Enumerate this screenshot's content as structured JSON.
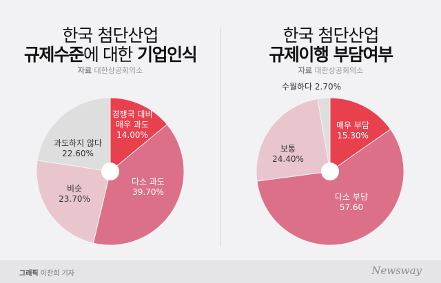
{
  "colors": {
    "red": "#e9404e",
    "pink": "#dc7089",
    "lightpink": "#e9c6cd",
    "gray": "#dedede"
  },
  "chart_data": [
    {
      "type": "pie",
      "title_line1": "한국 첨단산업",
      "title_bold1": "규제수준",
      "title_thin": "에 대한",
      "title_bold2": "기업인식",
      "source_label": "자료",
      "source": "대한상공회의소",
      "slices": [
        {
          "label": "경쟁국 대비 매우 과도",
          "lines": [
            "경쟁국 대비",
            "매우 과도"
          ],
          "value": 14.0,
          "value_label": "14.00%",
          "color": "#e9404e"
        },
        {
          "label": "다소 과도",
          "lines": [
            "다소 과도"
          ],
          "value": 39.7,
          "value_label": "39.70%",
          "color": "#dc7089"
        },
        {
          "label": "비슷",
          "lines": [
            "비슷"
          ],
          "value": 23.7,
          "value_label": "23.70%",
          "color": "#e9c6cd"
        },
        {
          "label": "과도하지 않다",
          "lines": [
            "과도하지 않다"
          ],
          "value": 22.6,
          "value_label": "22.60%",
          "color": "#dedede"
        }
      ]
    },
    {
      "type": "pie",
      "title_line1": "한국 첨단산업",
      "title_bold1": "규제이행 부담여부",
      "source_label": "자료",
      "source": "대한상공회의소",
      "slices": [
        {
          "label": "매우 부담",
          "lines": [
            "매우 부담"
          ],
          "value": 15.3,
          "value_label": "15.30%",
          "color": "#e9404e"
        },
        {
          "label": "다소 부담",
          "lines": [
            "다소 부담"
          ],
          "value": 57.6,
          "value_label": "57.60",
          "color": "#dc7089"
        },
        {
          "label": "보통",
          "lines": [
            "보통"
          ],
          "value": 24.4,
          "value_label": "24.40%",
          "color": "#e9c6cd"
        },
        {
          "label": "수월하다",
          "lines": [
            "수월하다 2.70%"
          ],
          "value": 2.7,
          "value_label": "",
          "color": "#dedede"
        }
      ]
    }
  ],
  "footer": {
    "credit_label": "그래픽",
    "credit": "이찬희 기자",
    "logo": "Newsway"
  }
}
